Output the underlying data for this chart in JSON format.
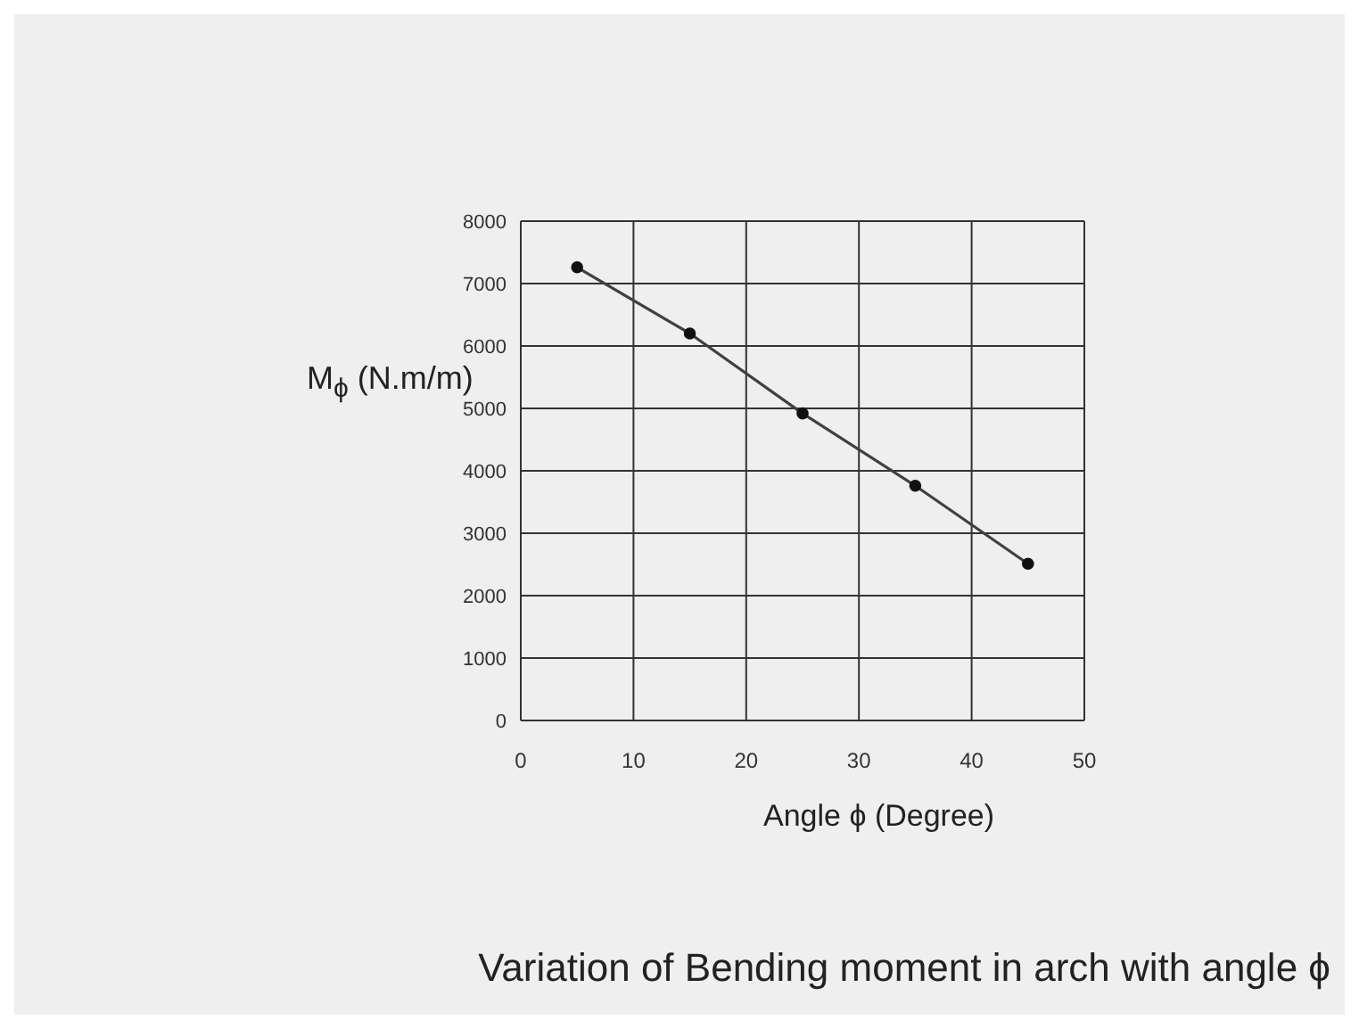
{
  "chart_data": {
    "type": "line",
    "title": "Variation of Bending moment in arch  with angle ϕ",
    "xlabel": "Angle ϕ (Degree)",
    "ylabel": "M$_{ϕ}$ (N.m/m)",
    "x": [
      5,
      15,
      25,
      35,
      45
    ],
    "series": [
      {
        "color": "#404040",
        "values": [
          7260,
          6200,
          4920,
          3760,
          2510
        ]
      }
    ],
    "xlim": [
      0,
      50
    ],
    "xticks": [
      0,
      10,
      20,
      30,
      40,
      50
    ],
    "ylim": [
      0,
      8000
    ],
    "yticks": [
      0,
      1000,
      2000,
      3000,
      4000,
      5000,
      6000,
      7000,
      8000
    ],
    "grid": true,
    "marker": "circle",
    "line_style": "solid"
  }
}
